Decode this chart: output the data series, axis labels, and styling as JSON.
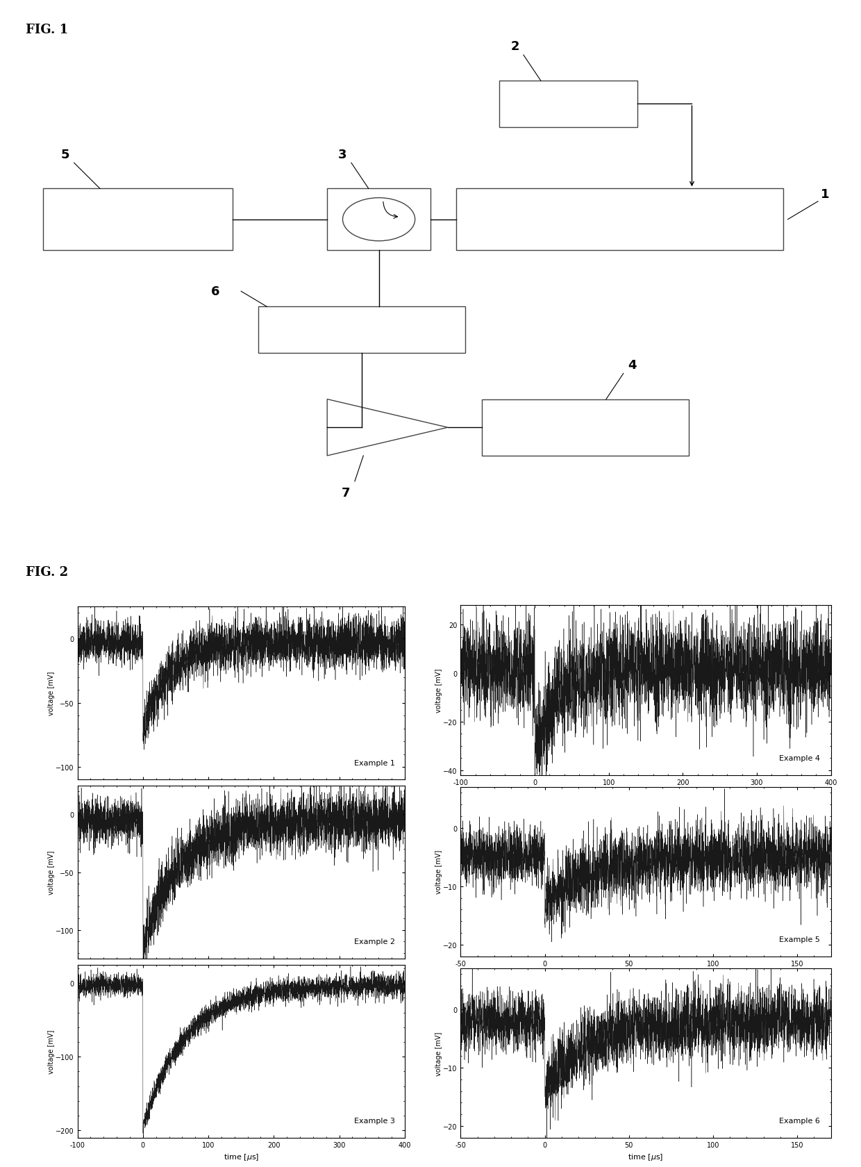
{
  "fig1_label": "FIG. 1",
  "fig2_label": "FIG. 2",
  "ex1": {
    "label": "Example 1",
    "ylim": [
      -110,
      25
    ],
    "yticks": [
      0,
      -50,
      -100
    ],
    "xlim": [
      -100,
      400
    ],
    "xticks": [
      -100,
      0,
      100,
      200,
      300,
      400
    ],
    "peak": -75,
    "tau": 40,
    "noise_amp_pre": 8,
    "noise_amp_post": 10,
    "baseline": -3
  },
  "ex2": {
    "label": "Example 2",
    "ylim": [
      -125,
      25
    ],
    "yticks": [
      0,
      -50,
      -100
    ],
    "xlim": [
      -100,
      400
    ],
    "xticks": [
      -100,
      0,
      100,
      200,
      300,
      400
    ],
    "peak": -115,
    "tau": 55,
    "noise_amp_pre": 10,
    "noise_amp_post": 12,
    "baseline": -5
  },
  "ex3": {
    "label": "Example 3",
    "ylim": [
      -210,
      25
    ],
    "yticks": [
      0,
      -100,
      -200
    ],
    "xlim": [
      -100,
      400
    ],
    "xticks": [
      -100,
      0,
      100,
      200,
      300,
      400
    ],
    "peak": -195,
    "tau": 65,
    "noise_amp_pre": 7,
    "noise_amp_post": 8,
    "baseline": -3
  },
  "ex4": {
    "label": "Example 4",
    "ylim": [
      -42,
      28
    ],
    "yticks": [
      20,
      0,
      -20,
      -40
    ],
    "xlim": [
      -100,
      400
    ],
    "xticks": [
      -100,
      0,
      100,
      200,
      300,
      400
    ],
    "peak": -30,
    "tau": 35,
    "noise_amp_pre": 10,
    "noise_amp_post": 10,
    "baseline": 2
  },
  "ex5": {
    "label": "Example 5",
    "ylim": [
      -22,
      7
    ],
    "yticks": [
      0,
      -10,
      -20
    ],
    "xlim": [
      -50,
      170
    ],
    "xticks": [
      -50,
      0,
      50,
      100,
      150
    ],
    "peak": -13,
    "tau": 28,
    "noise_amp_pre": 2.5,
    "noise_amp_post": 3,
    "baseline": -5
  },
  "ex6": {
    "label": "Example 6",
    "ylim": [
      -22,
      7
    ],
    "yticks": [
      0,
      -10,
      -20
    ],
    "xlim": [
      -50,
      170
    ],
    "xticks": [
      -50,
      0,
      50,
      100,
      150
    ],
    "peak": -14,
    "tau": 25,
    "noise_amp_pre": 2.5,
    "noise_amp_post": 3,
    "baseline": -2
  }
}
